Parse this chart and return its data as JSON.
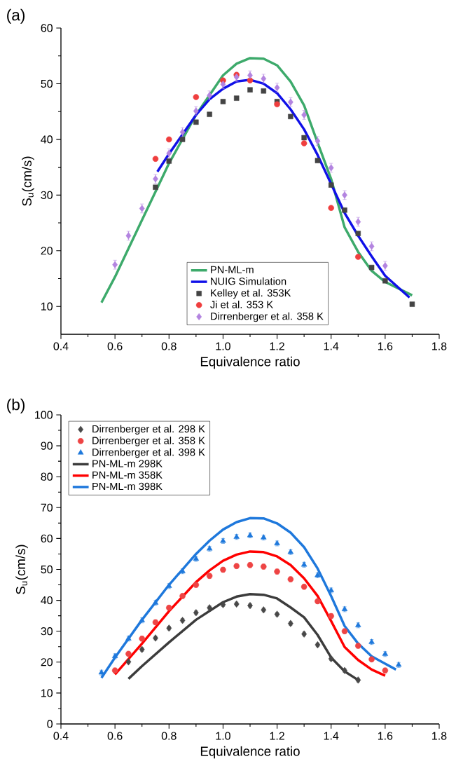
{
  "chart_data": [
    {
      "type": "scatter",
      "annotations": [
        "(a)"
      ],
      "xlabel": "Equivalence ratio",
      "ylabel": "S$_{u}$(cm/s)",
      "xlim": [
        0.4,
        1.8
      ],
      "ylim": [
        5,
        60
      ],
      "xticks": [
        {
          "value": 0.4,
          "label": "0.4"
        },
        {
          "value": 0.6,
          "label": "0.6"
        },
        {
          "value": 0.8,
          "label": "0.8"
        },
        {
          "value": 1.0,
          "label": "1.0"
        },
        {
          "value": 1.2,
          "label": "1.2"
        },
        {
          "value": 1.4,
          "label": "1.4"
        },
        {
          "value": 1.6,
          "label": "1.6"
        },
        {
          "value": 1.8,
          "label": "1.8"
        }
      ],
      "yticks": [
        10,
        20,
        30,
        40,
        50,
        60
      ],
      "legend": "bottom",
      "grid": false,
      "series": [
        {
          "name": "PN-ML-m",
          "type": "line",
          "marker": "none",
          "color": "#3daa6b",
          "x": [
            0.55,
            0.6,
            0.7,
            0.8,
            0.9,
            1.0,
            1.05,
            1.1,
            1.15,
            1.2,
            1.25,
            1.3,
            1.35,
            1.4,
            1.45,
            1.5,
            1.55,
            1.6,
            1.7
          ],
          "values": [
            10.7,
            15.3,
            25.5,
            35.7,
            44.4,
            51.5,
            53.6,
            54.6,
            54.5,
            53.3,
            50.4,
            46.1,
            39.4,
            32.9,
            24.2,
            19.8,
            16.4,
            14.4,
            12.0
          ]
        },
        {
          "name": "NUIG Simulation",
          "type": "line",
          "marker": "none",
          "color": "#1010e8",
          "x": [
            0.757,
            0.8,
            0.85,
            0.9,
            0.95,
            1.0,
            1.05,
            1.1,
            1.15,
            1.2,
            1.25,
            1.3,
            1.35,
            1.4,
            1.45,
            1.5,
            1.55,
            1.6,
            1.69
          ],
          "values": [
            34.2,
            37.4,
            40.9,
            44.4,
            47.2,
            49.1,
            50.4,
            50.7,
            50.0,
            48.3,
            45.4,
            41.8,
            37.2,
            32.0,
            26.8,
            22.7,
            19.0,
            15.5,
            11.6
          ]
        },
        {
          "name": "Kelley et al. 353K",
          "marker": "square",
          "color": "#444444",
          "x": [
            0.75,
            0.8,
            0.85,
            0.9,
            0.95,
            1.0,
            1.05,
            1.1,
            1.15,
            1.2,
            1.25,
            1.3,
            1.35,
            1.4,
            1.45,
            1.5,
            1.55,
            1.6,
            1.7
          ],
          "values": [
            31.4,
            36.1,
            40.0,
            43.1,
            44.5,
            46.8,
            47.4,
            48.9,
            48.7,
            46.8,
            44.1,
            40.3,
            36.2,
            31.8,
            27.3,
            23.1,
            17.0,
            14.6,
            10.4
          ]
        },
        {
          "name": "Ji et al. 353 K",
          "marker": "circle",
          "color": "#ef3e3e",
          "x": [
            0.75,
            0.8,
            0.9,
            1.0,
            1.05,
            1.1,
            1.2,
            1.3,
            1.4,
            1.5
          ],
          "values": [
            36.5,
            40.0,
            47.6,
            50.6,
            51.6,
            50.6,
            46.3,
            39.3,
            27.7,
            18.9
          ]
        },
        {
          "name": "Dirrenberger et al. 358 K",
          "marker": "diamond",
          "color": "#b384e0",
          "x": [
            0.6,
            0.65,
            0.7,
            0.75,
            0.8,
            0.85,
            0.9,
            0.95,
            1.0,
            1.05,
            1.1,
            1.15,
            1.2,
            1.25,
            1.3,
            1.35,
            1.4,
            1.45,
            1.5,
            1.55,
            1.6
          ],
          "values": [
            17.5,
            22.7,
            27.6,
            32.9,
            37.5,
            41.3,
            45.1,
            47.9,
            49.9,
            51.2,
            51.5,
            50.9,
            49.3,
            46.7,
            44.4,
            39.7,
            34.9,
            30.0,
            25.2,
            20.8,
            17.3
          ],
          "errors": [
            0.8,
            0.8,
            0.8,
            0.8,
            0.8,
            0.8,
            0.8,
            0.8,
            0.8,
            0.8,
            0.8,
            0.8,
            0.8,
            0.8,
            0.8,
            0.8,
            0.8,
            0.8,
            0.8,
            0.8,
            0.8
          ]
        }
      ]
    },
    {
      "type": "scatter",
      "annotations": [
        "(b)"
      ],
      "xlabel": "Equivalence ratio",
      "ylabel": "S$_{u}$(cm/s)",
      "xlim": [
        0.4,
        1.8
      ],
      "ylim": [
        0,
        100
      ],
      "xticks": [
        {
          "value": 0.4,
          "label": "0.4"
        },
        {
          "value": 0.6,
          "label": "0.6"
        },
        {
          "value": 0.8,
          "label": "0.8"
        },
        {
          "value": 1.0,
          "label": "1.0"
        },
        {
          "value": 1.2,
          "label": "1.2"
        },
        {
          "value": 1.4,
          "label": "1.4"
        },
        {
          "value": 1.6,
          "label": "1.6"
        },
        {
          "value": 1.8,
          "label": "1.8"
        }
      ],
      "yticks": [
        0,
        10,
        20,
        30,
        40,
        50,
        60,
        70,
        80,
        90,
        100
      ],
      "legend": "top left",
      "grid": false,
      "series": [
        {
          "name": "Dirrenberger et al. 298 K",
          "marker": "diamond",
          "color": "#484848",
          "x": [
            0.65,
            0.7,
            0.75,
            0.8,
            0.85,
            0.9,
            0.95,
            1.0,
            1.05,
            1.1,
            1.15,
            1.2,
            1.25,
            1.3,
            1.35,
            1.4,
            1.45,
            1.5
          ],
          "values": [
            20.1,
            24.1,
            27.8,
            31.0,
            33.5,
            36.0,
            37.6,
            38.6,
            38.8,
            38.3,
            36.9,
            35.5,
            32.5,
            29.1,
            25.6,
            21.1,
            17.3,
            14.2
          ],
          "errors": [
            0.6,
            0.6,
            0.6,
            0.6,
            0.6,
            0.6,
            0.6,
            0.6,
            0.6,
            0.6,
            0.6,
            0.6,
            0.6,
            0.6,
            0.6,
            0.6,
            0.6,
            0.6
          ]
        },
        {
          "name": "Dirrenberger et al. 358 K",
          "marker": "circle",
          "color": "#ee4444",
          "x": [
            0.6,
            0.65,
            0.7,
            0.75,
            0.8,
            0.85,
            0.9,
            0.95,
            1.0,
            1.05,
            1.1,
            1.15,
            1.2,
            1.25,
            1.3,
            1.35,
            1.4,
            1.45,
            1.5,
            1.55,
            1.6
          ],
          "values": [
            17.3,
            22.7,
            27.6,
            32.9,
            37.6,
            41.4,
            45.0,
            47.9,
            49.9,
            51.1,
            51.4,
            50.9,
            49.3,
            46.8,
            44.4,
            39.7,
            34.9,
            30.0,
            25.3,
            20.9,
            17.3
          ],
          "errors": [
            0.8,
            0.8,
            0.8,
            0.8,
            0.8,
            0.8,
            0.8,
            0.8,
            0.8,
            0.8,
            0.8,
            0.8,
            0.8,
            0.8,
            0.8,
            0.8,
            0.8,
            0.8,
            0.8,
            0.8,
            0.8
          ]
        },
        {
          "name": "Dirrenberger et al. 398 K",
          "marker": "triangle",
          "color": "#1e78dc",
          "x": [
            0.55,
            0.6,
            0.65,
            0.7,
            0.75,
            0.8,
            0.85,
            0.9,
            0.95,
            1.0,
            1.05,
            1.1,
            1.15,
            1.2,
            1.25,
            1.3,
            1.35,
            1.4,
            1.45,
            1.5,
            1.55,
            1.6,
            1.65
          ],
          "values": [
            16.6,
            21.9,
            27.6,
            33.5,
            39.2,
            44.6,
            49.4,
            53.4,
            56.7,
            59.2,
            60.5,
            61.0,
            60.3,
            58.4,
            55.6,
            51.5,
            48.1,
            43.2,
            37.1,
            31.9,
            26.5,
            22.6,
            19.1
          ],
          "errors": [
            0.8,
            0.8,
            0.8,
            0.8,
            0.8,
            0.8,
            0.8,
            0.8,
            0.8,
            0.8,
            0.8,
            0.8,
            0.8,
            0.8,
            0.8,
            0.8,
            0.8,
            0.8,
            0.8,
            0.8,
            0.8,
            0.8,
            0.8
          ]
        },
        {
          "name": "PN-ML-m 298K",
          "type": "line",
          "marker": "none",
          "color": "#3c3c3c",
          "x": [
            0.65,
            0.7,
            0.8,
            0.9,
            1.0,
            1.05,
            1.1,
            1.15,
            1.2,
            1.25,
            1.3,
            1.35,
            1.4,
            1.45,
            1.5
          ],
          "values": [
            14.6,
            18.7,
            26.4,
            33.7,
            39.4,
            41.2,
            42.0,
            41.8,
            40.6,
            37.7,
            34.5,
            28.8,
            21.5,
            17.0,
            14.2
          ]
        },
        {
          "name": "PN-ML-m 358K",
          "type": "line",
          "marker": "none",
          "color": "#ff0000",
          "x": [
            0.6,
            0.7,
            0.8,
            0.9,
            0.95,
            1.0,
            1.05,
            1.1,
            1.15,
            1.2,
            1.25,
            1.3,
            1.35,
            1.4,
            1.45,
            1.5,
            1.55,
            1.6
          ],
          "values": [
            16.0,
            26.0,
            36.5,
            45.9,
            49.7,
            52.8,
            54.8,
            55.8,
            55.6,
            54.2,
            51.4,
            47.1,
            41.4,
            33.3,
            24.9,
            20.7,
            17.6,
            15.6
          ]
        },
        {
          "name": "PN-ML-m 398K",
          "type": "line",
          "marker": "none",
          "color": "#1e78dc",
          "x": [
            0.55,
            0.6,
            0.7,
            0.8,
            0.9,
            0.95,
            1.0,
            1.05,
            1.1,
            1.15,
            1.2,
            1.25,
            1.3,
            1.35,
            1.4,
            1.45,
            1.5,
            1.55,
            1.6,
            1.64
          ],
          "values": [
            14.9,
            21.5,
            33.7,
            45.0,
            55.0,
            59.3,
            62.9,
            65.3,
            66.6,
            66.5,
            64.9,
            61.9,
            57.2,
            50.3,
            41.4,
            31.7,
            26.0,
            21.9,
            19.5,
            17.6
          ]
        }
      ]
    }
  ]
}
